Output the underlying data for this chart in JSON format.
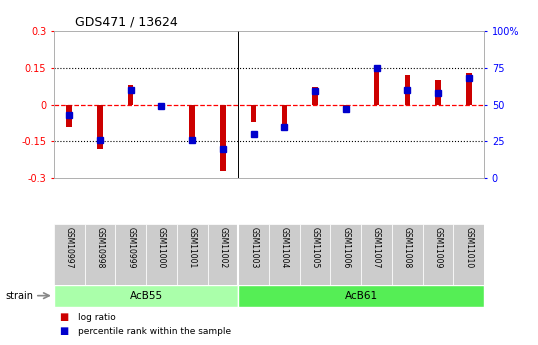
{
  "title": "GDS471 / 13624",
  "samples": [
    "GSM10997",
    "GSM10998",
    "GSM10999",
    "GSM11000",
    "GSM11001",
    "GSM11002",
    "GSM11003",
    "GSM11004",
    "GSM11005",
    "GSM11006",
    "GSM11007",
    "GSM11008",
    "GSM11009",
    "GSM11010"
  ],
  "log_ratio": [
    -0.09,
    -0.18,
    0.08,
    -0.02,
    -0.16,
    -0.27,
    -0.07,
    -0.1,
    0.07,
    -0.02,
    0.155,
    0.12,
    0.1,
    0.13
  ],
  "pct_rank": [
    43,
    26,
    60,
    49,
    26,
    20,
    30,
    35,
    59,
    47,
    75,
    60,
    58,
    68
  ],
  "groups": [
    {
      "name": "AcB55",
      "start": 0,
      "end": 5,
      "color": "#aaffaa"
    },
    {
      "name": "AcB61",
      "start": 6,
      "end": 13,
      "color": "#55ee55"
    }
  ],
  "ylim_left": [
    -0.3,
    0.3
  ],
  "ylim_right": [
    0,
    100
  ],
  "yticks_left": [
    -0.3,
    -0.15,
    0,
    0.15,
    0.3
  ],
  "yticks_right": [
    0,
    25,
    50,
    75,
    100
  ],
  "ytick_labels_left": [
    "-0.3",
    "-0.15",
    "0",
    "0.15",
    "0.3"
  ],
  "ytick_labels_right": [
    "0",
    "25",
    "50",
    "75",
    "100%"
  ],
  "bar_width": 0.18,
  "log_color": "#cc0000",
  "pct_color": "#0000cc",
  "strain_label": "strain",
  "legend_items": [
    {
      "label": "log ratio",
      "color": "#cc0000"
    },
    {
      "label": "percentile rank within the sample",
      "color": "#0000cc"
    }
  ],
  "separator_after": 5,
  "bg_color": "#ffffff",
  "plot_bg": "#ffffff",
  "tick_label_area_color": "#cccccc",
  "marker_size": 5
}
